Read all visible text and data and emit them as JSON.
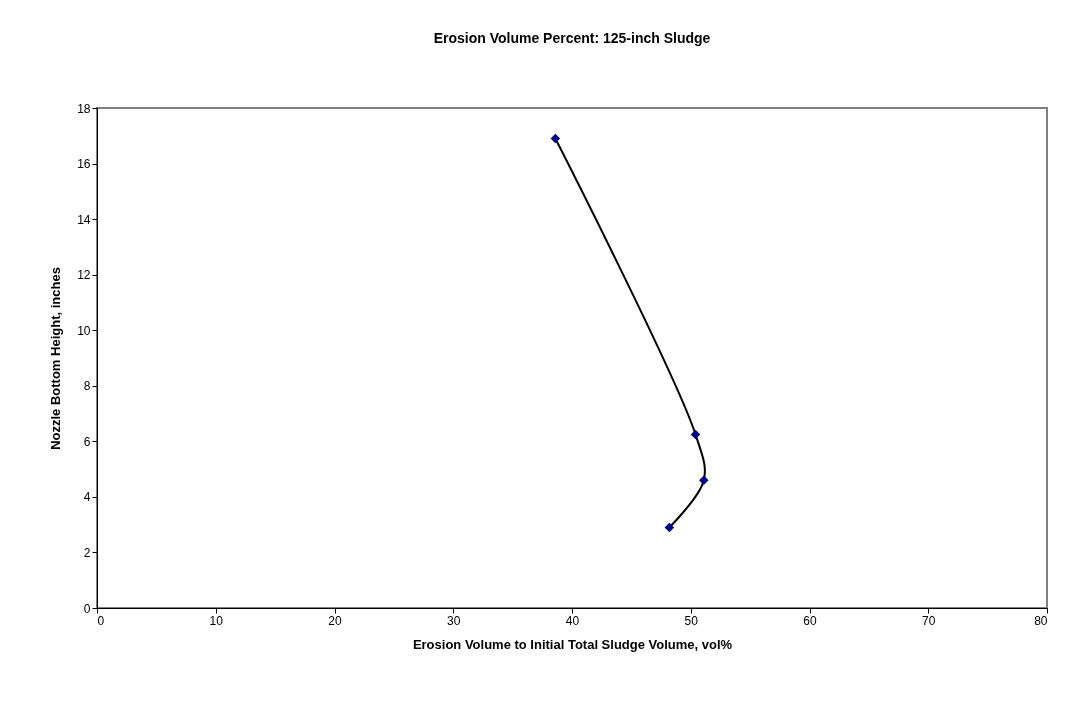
{
  "chart_data": {
    "type": "line",
    "title": "Erosion Volume Percent: 125-inch Sludge",
    "xlabel": "Erosion Volume to Initial Total Sludge Volume, vol%",
    "ylabel": "Nozzle Bottom Height, inches",
    "series": [
      {
        "color": "#000080",
        "x": [
          38.6,
          50.4,
          51.1,
          48.2
        ],
        "values": [
          16.9,
          6.25,
          4.6,
          2.9
        ]
      }
    ],
    "xlim": [
      0,
      80
    ],
    "xticks": [
      0,
      10,
      20,
      30,
      40,
      50,
      60,
      70,
      80
    ],
    "ylim": [
      0,
      18
    ],
    "yticks": [
      0,
      2,
      4,
      6,
      8,
      10,
      12,
      14,
      16,
      18
    ],
    "grid": false,
    "marker": "diamond",
    "line_style": "solid"
  }
}
